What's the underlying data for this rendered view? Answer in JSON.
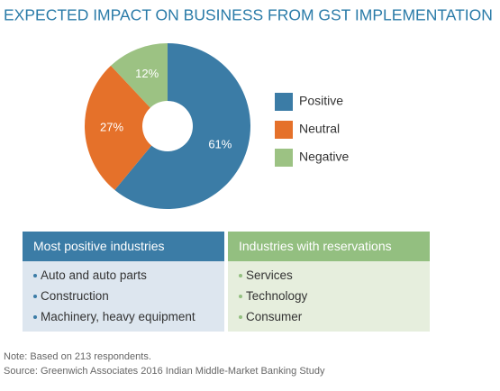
{
  "chart_data": {
    "type": "pie",
    "donut": true,
    "title": "EXPECTED IMPACT ON BUSINESS FROM GST IMPLEMENTATION",
    "categories": [
      "Positive",
      "Neutral",
      "Negative"
    ],
    "values": [
      61,
      27,
      12
    ],
    "value_labels": [
      "61%",
      "27%",
      "12%"
    ],
    "colors": [
      "#3b7ca6",
      "#e5712a",
      "#9cc283"
    ],
    "legend": "right"
  },
  "boxes": [
    {
      "title": "Most positive industries",
      "color": "#3b7ca6",
      "background": "#dde6ef",
      "items": [
        "Auto and auto parts",
        "Construction",
        "Machinery, heavy equipment"
      ]
    },
    {
      "title": "Industries with reservations",
      "color": "#93bf80",
      "background": "#e6eedd",
      "items": [
        "Services",
        "Technology",
        "Consumer"
      ]
    }
  ],
  "note": "Note: Based on 213 respondents.",
  "source": "Source: Greenwich Associates 2016 Indian Middle-Market Banking Study"
}
